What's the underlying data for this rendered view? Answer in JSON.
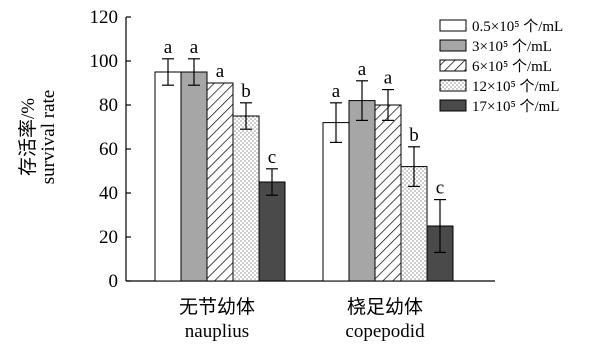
{
  "chart_data": {
    "type": "bar",
    "ylabel_cn": "存活率/%",
    "ylabel_en": "survival rate",
    "ylim": [
      0,
      120
    ],
    "yticks": [
      "0",
      "20",
      "40",
      "60",
      "80",
      "100",
      "120"
    ],
    "groups": [
      {
        "label_cn": "无节幼体",
        "label_en": "nauplius"
      },
      {
        "label_cn": "桡足幼体",
        "label_en": "copepodid"
      }
    ],
    "series": [
      {
        "legend": "0.5×10⁵ 个/mL",
        "fill": "white",
        "values": [
          95,
          72
        ],
        "errors": [
          6,
          9
        ],
        "letters": [
          "a",
          "a"
        ]
      },
      {
        "legend": "3×10⁵ 个/mL",
        "fill": "gray",
        "values": [
          95,
          82
        ],
        "errors": [
          6,
          9
        ],
        "letters": [
          "a",
          "a"
        ]
      },
      {
        "legend": "6×10⁵ 个/mL",
        "fill": "hatch",
        "values": [
          90,
          80
        ],
        "errors": [
          0,
          7
        ],
        "letters": [
          "a",
          "a"
        ]
      },
      {
        "legend": "12×10⁵ 个/mL",
        "fill": "dots",
        "values": [
          75,
          52
        ],
        "errors": [
          6,
          9
        ],
        "letters": [
          "b",
          "b"
        ]
      },
      {
        "legend": "17×10⁵ 个/mL",
        "fill": "dark",
        "values": [
          45,
          25
        ],
        "errors": [
          6,
          12
        ],
        "letters": [
          "c",
          "c"
        ]
      }
    ]
  }
}
